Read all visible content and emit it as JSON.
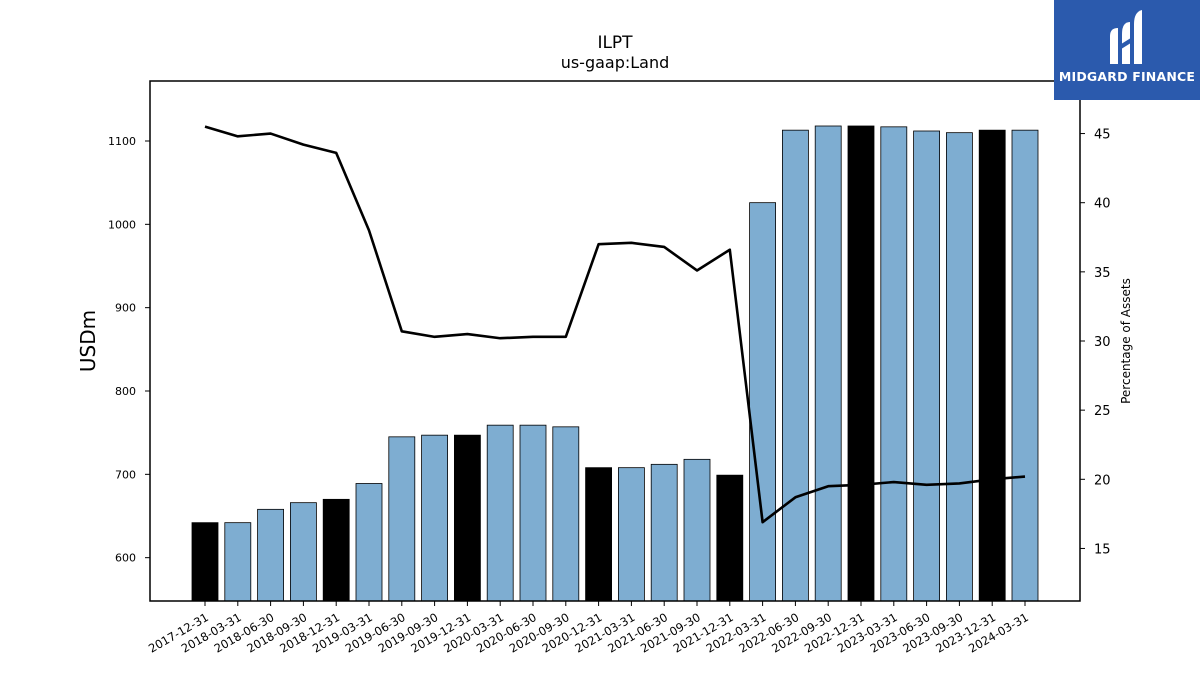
{
  "chart_data": {
    "type": "bar",
    "title": "ILPT",
    "subtitle": "us-gaap:Land",
    "ylabel": "USDm",
    "y2label": "Percentage of Assets",
    "ylim": [
      548,
      1172
    ],
    "y2lim": [
      11.2,
      48.8
    ],
    "yticks": [
      600,
      700,
      800,
      900,
      1000,
      1100
    ],
    "y2ticks": [
      15,
      20,
      25,
      30,
      35,
      40,
      45
    ],
    "categories": [
      "2017-12-31",
      "2018-03-31",
      "2018-06-30",
      "2018-09-30",
      "2018-12-31",
      "2019-03-31",
      "2019-06-30",
      "2019-09-30",
      "2019-12-31",
      "2020-03-31",
      "2020-06-30",
      "2020-09-30",
      "2020-12-31",
      "2021-03-31",
      "2021-06-30",
      "2021-09-30",
      "2021-12-31",
      "2022-03-31",
      "2022-06-30",
      "2022-09-30",
      "2022-12-31",
      "2023-03-31",
      "2023-06-30",
      "2023-09-30",
      "2023-12-31",
      "2024-03-31"
    ],
    "series": [
      {
        "type": "bar",
        "axis": "left",
        "values": [
          642,
          642,
          658,
          666,
          670,
          689,
          745,
          747,
          747,
          759,
          759,
          757,
          708,
          708,
          712,
          718,
          699,
          1026,
          1113,
          1118,
          1118,
          1117,
          1112,
          1110,
          1113,
          1113
        ],
        "highlight": [
          true,
          false,
          false,
          false,
          true,
          false,
          false,
          false,
          true,
          false,
          false,
          false,
          true,
          false,
          false,
          false,
          true,
          false,
          false,
          false,
          true,
          false,
          false,
          false,
          true,
          false
        ]
      },
      {
        "type": "line",
        "axis": "right",
        "values": [
          45.5,
          44.8,
          45.0,
          44.2,
          43.6,
          38.0,
          30.7,
          30.3,
          30.5,
          30.2,
          30.3,
          30.3,
          37.0,
          37.1,
          36.8,
          35.1,
          36.6,
          16.9,
          18.7,
          19.5,
          19.6,
          19.8,
          19.6,
          19.7,
          20.0,
          20.2
        ]
      }
    ],
    "colors": {
      "bar": "#7eadd1",
      "bar_highlight": "#000000",
      "line": "#000000"
    }
  },
  "logo": {
    "text": "MIDGARD FINANCE",
    "background": "#2b5aad"
  }
}
